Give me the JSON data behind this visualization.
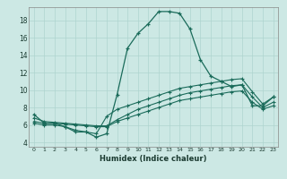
{
  "title": "",
  "xlabel": "Humidex (Indice chaleur)",
  "ylabel": "",
  "bg_color": "#cce8e4",
  "line_color": "#1a6b5a",
  "grid_color": "#aed4cf",
  "xlim": [
    -0.5,
    23.5
  ],
  "ylim": [
    3.5,
    19.5
  ],
  "xticks": [
    0,
    1,
    2,
    3,
    4,
    5,
    6,
    7,
    8,
    9,
    10,
    11,
    12,
    13,
    14,
    15,
    16,
    17,
    18,
    19,
    20,
    21,
    22,
    23
  ],
  "yticks": [
    4,
    6,
    8,
    10,
    12,
    14,
    16,
    18
  ],
  "curve1_x": [
    0,
    1,
    2,
    3,
    4,
    5,
    6,
    7,
    8,
    9,
    10,
    11,
    12,
    13,
    14,
    15,
    16,
    17,
    18,
    19,
    20,
    21,
    22,
    23
  ],
  "curve1_y": [
    7.2,
    6.2,
    6.2,
    5.8,
    5.2,
    5.2,
    4.6,
    5.0,
    9.5,
    14.8,
    16.5,
    17.6,
    19.0,
    19.0,
    18.8,
    17.0,
    13.5,
    11.6,
    11.0,
    10.4,
    10.6,
    8.2,
    8.2,
    9.2
  ],
  "curve2_x": [
    0,
    1,
    2,
    3,
    4,
    5,
    6,
    7,
    8,
    9,
    10,
    11,
    12,
    13,
    14,
    15,
    16,
    17,
    18,
    19,
    20,
    21,
    22,
    23
  ],
  "curve2_y": [
    6.2,
    6.0,
    6.0,
    5.8,
    5.4,
    5.2,
    5.0,
    7.0,
    7.8,
    8.2,
    8.6,
    9.0,
    9.4,
    9.8,
    10.2,
    10.4,
    10.6,
    10.8,
    11.0,
    11.2,
    11.3,
    9.8,
    8.4,
    9.2
  ],
  "curve3_x": [
    0,
    1,
    2,
    3,
    4,
    5,
    6,
    7,
    8,
    9,
    10,
    11,
    12,
    13,
    14,
    15,
    16,
    17,
    18,
    19,
    20,
    21,
    22,
    23
  ],
  "curve3_y": [
    6.4,
    6.2,
    6.2,
    6.1,
    6.0,
    5.9,
    5.8,
    5.8,
    6.4,
    6.8,
    7.2,
    7.6,
    8.0,
    8.4,
    8.8,
    9.0,
    9.2,
    9.4,
    9.6,
    9.8,
    9.9,
    8.6,
    7.8,
    8.2
  ],
  "curve4_x": [
    0,
    1,
    2,
    3,
    4,
    5,
    6,
    7,
    8,
    9,
    10,
    11,
    12,
    13,
    14,
    15,
    16,
    17,
    18,
    19,
    20,
    21,
    22,
    23
  ],
  "curve4_y": [
    6.8,
    6.4,
    6.3,
    6.2,
    6.1,
    6.0,
    5.9,
    5.9,
    6.6,
    7.2,
    7.8,
    8.2,
    8.6,
    9.0,
    9.4,
    9.7,
    9.9,
    10.1,
    10.3,
    10.5,
    10.6,
    9.2,
    8.0,
    8.6
  ]
}
